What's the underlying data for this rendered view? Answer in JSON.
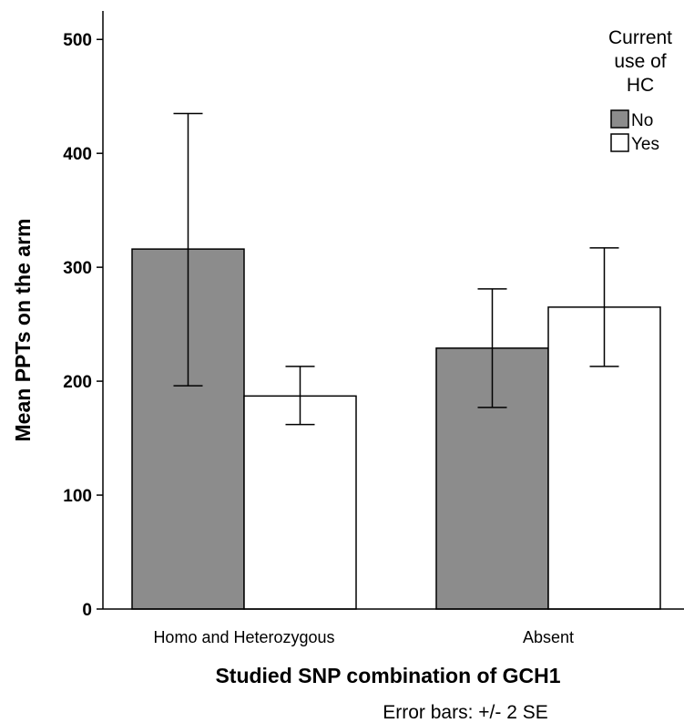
{
  "chart_data": {
    "type": "bar",
    "xlabel": "Studied SNP combination of GCH1",
    "ylabel": "Mean PPTs on the arm",
    "ylim": [
      0,
      525
    ],
    "yticks": [
      "0",
      "100",
      "200",
      "300",
      "400",
      "500"
    ],
    "categories": [
      "Homo and Heterozygous",
      "Absent"
    ],
    "legend": {
      "title_lines": [
        "Current",
        "use of",
        "HC"
      ],
      "placement": "top-right"
    },
    "series": [
      {
        "name": "No",
        "color": "#8c8c8c",
        "values": [
          316,
          229
        ],
        "err_low": [
          196,
          177
        ],
        "err_high": [
          435,
          281
        ]
      },
      {
        "name": "Yes",
        "color": "#ffffff",
        "values": [
          187,
          265
        ],
        "err_low": [
          162,
          213
        ],
        "err_high": [
          213,
          317
        ]
      }
    ],
    "footnote": "Error bars: +/- 2 SE"
  }
}
